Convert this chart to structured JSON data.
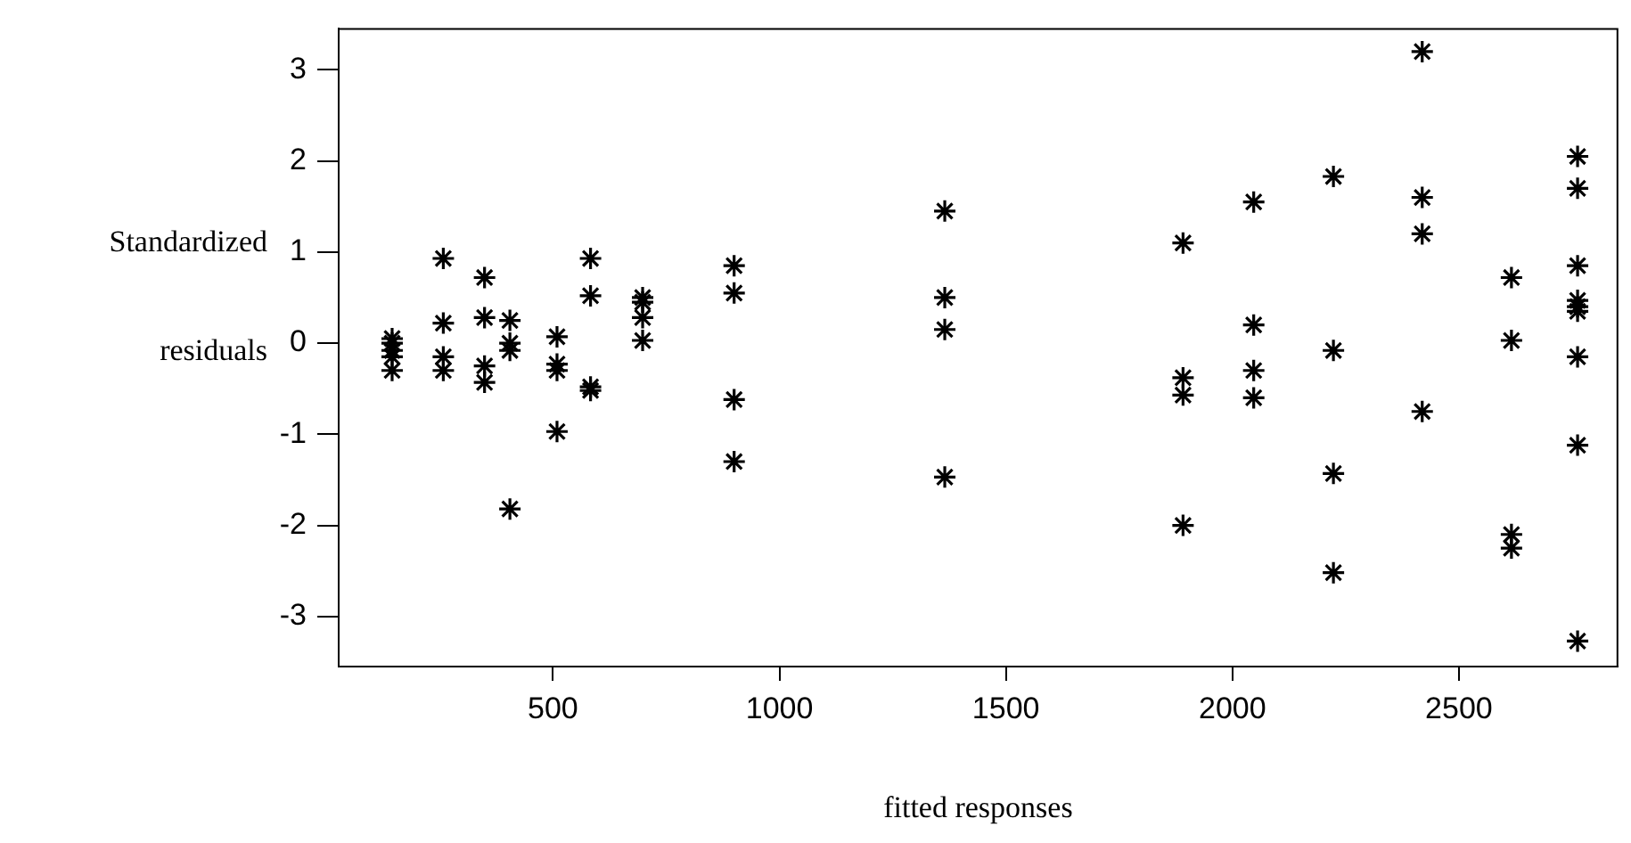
{
  "chart_data": {
    "type": "scatter",
    "xlabel": "fitted responses",
    "ylabel": "Standardized residuals",
    "marker": "cross",
    "grid": false,
    "legend": false,
    "xlim": [
      27,
      2850
    ],
    "xticks": [
      500,
      1000,
      1500,
      2000,
      2500
    ],
    "ylim": [
      -3.55,
      3.45
    ],
    "yticks": [
      -3,
      -2,
      -1,
      0,
      1,
      2,
      3
    ],
    "series": [
      {
        "color": "#000000",
        "x": [
          145,
          145,
          145,
          145,
          145,
          258,
          258,
          258,
          258,
          349,
          349,
          349,
          349,
          405,
          405,
          405,
          405,
          509,
          509,
          509,
          509,
          583,
          583,
          583,
          583,
          698,
          698,
          698,
          698,
          900,
          900,
          900,
          900,
          1365,
          1365,
          1365,
          1365,
          1891,
          1891,
          1891,
          1891,
          2047,
          2047,
          2047,
          2047,
          2223,
          2223,
          2223,
          2223,
          2419,
          2419,
          2419,
          2419,
          2616,
          2616,
          2616,
          2616,
          2762,
          2762,
          2762,
          2762,
          2762,
          2762,
          2762,
          2762,
          2762
        ],
        "values": [
          0.05,
          0,
          -0.08,
          -0.15,
          -0.3,
          0.93,
          0.22,
          -0.15,
          -0.3,
          0.72,
          0.28,
          -0.25,
          -0.43,
          0.25,
          0,
          -0.08,
          -1.82,
          0.07,
          -0.23,
          -0.3,
          -0.97,
          0.93,
          0.52,
          -0.48,
          -0.52,
          0.5,
          0.45,
          0.28,
          0.03,
          0.85,
          0.55,
          -0.62,
          -1.3,
          1.45,
          0.5,
          0.15,
          -1.47,
          1.1,
          -0.38,
          -0.57,
          -2,
          1.55,
          0.2,
          -0.3,
          -0.6,
          1.83,
          -0.08,
          -1.43,
          -2.52,
          3.2,
          1.6,
          1.2,
          -0.75,
          0.72,
          0.03,
          -2.1,
          -2.25,
          2.05,
          1.7,
          0.85,
          0.47,
          0.4,
          0.35,
          -0.15,
          -1.12,
          -3.27
        ]
      }
    ]
  }
}
